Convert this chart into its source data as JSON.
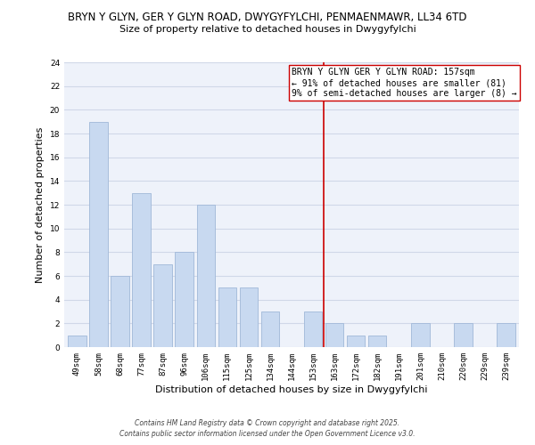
{
  "title": "BRYN Y GLYN, GER Y GLYN ROAD, DWYGYFYLCHI, PENMAENMAWR, LL34 6TD",
  "subtitle": "Size of property relative to detached houses in Dwygyfylchi",
  "xlabel": "Distribution of detached houses by size in Dwygyfylchi",
  "ylabel": "Number of detached properties",
  "bar_labels": [
    "49sqm",
    "58sqm",
    "68sqm",
    "77sqm",
    "87sqm",
    "96sqm",
    "106sqm",
    "115sqm",
    "125sqm",
    "134sqm",
    "144sqm",
    "153sqm",
    "163sqm",
    "172sqm",
    "182sqm",
    "191sqm",
    "201sqm",
    "210sqm",
    "220sqm",
    "229sqm",
    "239sqm"
  ],
  "bar_values": [
    1,
    19,
    6,
    13,
    7,
    8,
    12,
    5,
    5,
    3,
    0,
    3,
    2,
    1,
    1,
    0,
    2,
    0,
    2,
    0,
    2
  ],
  "bar_color": "#c8d9f0",
  "bar_edge_color": "#a0b8d8",
  "grid_color": "#d0d8e8",
  "bg_color": "#eef2fa",
  "vline_color": "#cc0000",
  "annotation_line1": "BRYN Y GLYN GER Y GLYN ROAD: 157sqm",
  "annotation_line2": "← 91% of detached houses are smaller (81)",
  "annotation_line3": "9% of semi-detached houses are larger (8) →",
  "footnote1": "Contains HM Land Registry data © Crown copyright and database right 2025.",
  "footnote2": "Contains public sector information licensed under the Open Government Licence v3.0.",
  "ylim": [
    0,
    24
  ],
  "yticks": [
    0,
    2,
    4,
    6,
    8,
    10,
    12,
    14,
    16,
    18,
    20,
    22,
    24
  ],
  "title_fontsize": 8.5,
  "subtitle_fontsize": 8,
  "axis_label_fontsize": 8,
  "tick_fontsize": 6.5,
  "annotation_fontsize": 7,
  "footnote_fontsize": 5.5
}
